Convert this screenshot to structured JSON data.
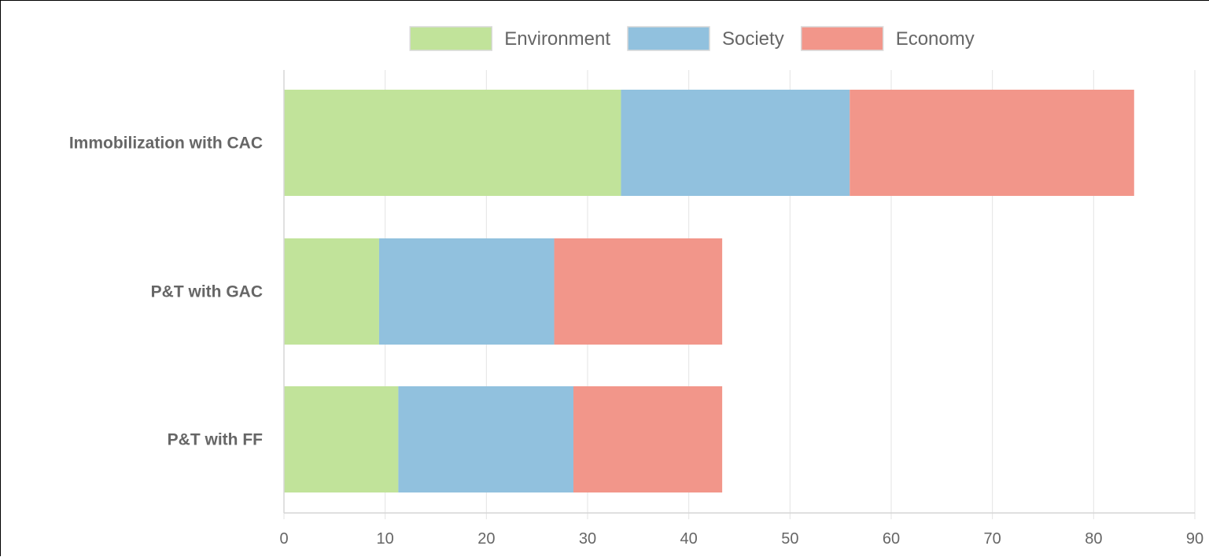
{
  "chart_data": {
    "type": "bar",
    "orientation": "horizontal",
    "stacked": true,
    "categories": [
      "Immobilization with CAC",
      "P&T with GAC",
      "P&T with FF"
    ],
    "series": [
      {
        "name": "Environment",
        "color": "#c1e39a",
        "values": [
          33.3,
          9.4,
          11.3
        ]
      },
      {
        "name": "Society",
        "color": "#91c1de",
        "values": [
          22.6,
          17.3,
          17.3
        ]
      },
      {
        "name": "Economy",
        "color": "#f2968a",
        "values": [
          28.1,
          16.6,
          14.7
        ]
      }
    ],
    "x_ticks": [
      "0",
      "10",
      "20",
      "30",
      "40",
      "50",
      "60",
      "70",
      "80",
      "90"
    ],
    "xlim": [
      0,
      90
    ],
    "grid": true,
    "legend_position": "top-center"
  }
}
